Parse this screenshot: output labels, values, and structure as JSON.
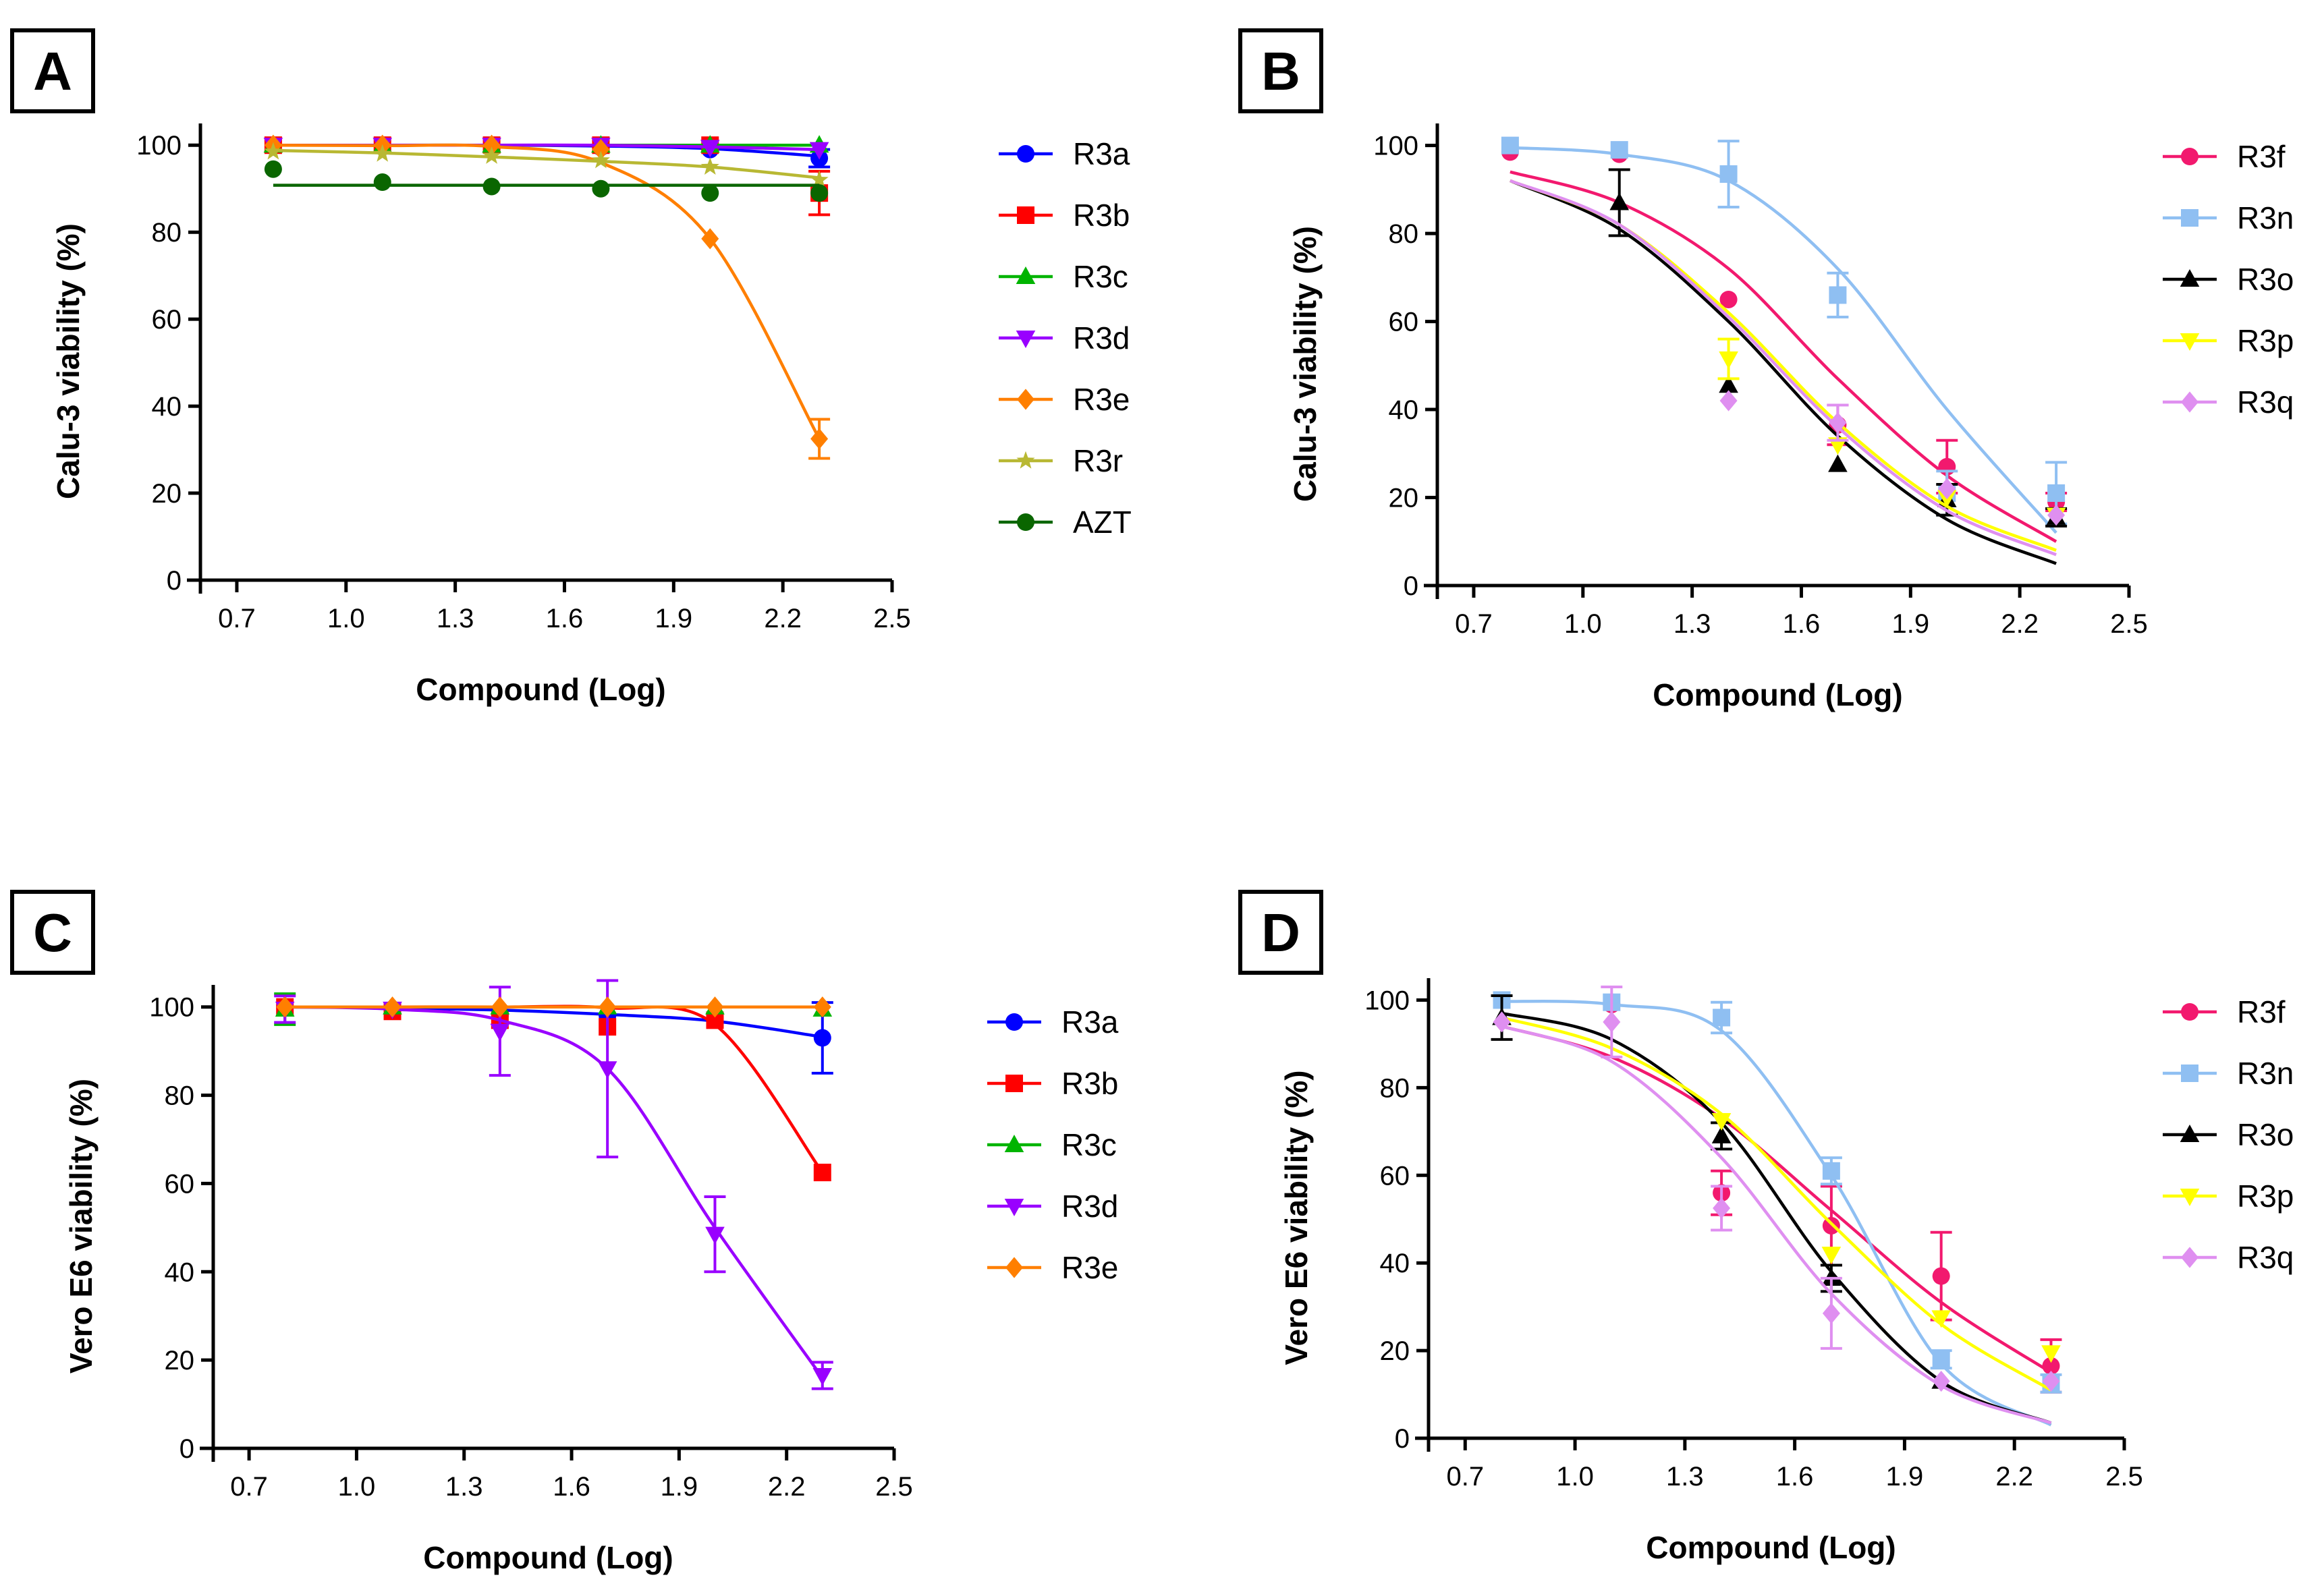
{
  "chart_data": [
    {
      "type": "line",
      "panel": "A",
      "xlabel": "Compound (Log)",
      "ylabel": "Calu-3 viability (%)",
      "xlim": [
        0.6,
        2.5
      ],
      "ylim": [
        0,
        105
      ],
      "xticks": [
        "0.7",
        "1.0",
        "1.3",
        "1.6",
        "1.9",
        "2.2",
        "2.5"
      ],
      "yticks": [
        "0",
        "20",
        "40",
        "60",
        "80",
        "100"
      ],
      "legend": "right",
      "x": [
        0.8,
        1.1,
        1.4,
        1.7,
        2.0,
        2.3
      ],
      "series": [
        {
          "name": "R3a",
          "color": "#0000ff",
          "marker": "circle",
          "values": [
            100,
            100,
            100,
            99.5,
            99,
            97
          ],
          "errors": [
            0,
            0,
            0,
            0,
            0,
            2
          ],
          "fit": [
            100,
            100,
            100,
            99.8,
            99.2,
            97.5
          ]
        },
        {
          "name": "R3b",
          "color": "#ff0000",
          "marker": "square",
          "values": [
            100,
            100,
            100,
            100,
            100,
            89
          ],
          "errors": [
            0,
            0,
            0,
            0,
            0,
            5
          ],
          "fit": [
            100,
            100,
            100,
            100,
            100,
            100
          ]
        },
        {
          "name": "R3c",
          "color": "#00b400",
          "marker": "triangle-up",
          "values": [
            100,
            100,
            100,
            100,
            100,
            100
          ],
          "errors": [
            0,
            0,
            0,
            0,
            0,
            0
          ],
          "fit": [
            100,
            100,
            100,
            100,
            100,
            100
          ]
        },
        {
          "name": "R3d",
          "color": "#9900ff",
          "marker": "triangle-down",
          "values": [
            100,
            100,
            100,
            100,
            99.5,
            99
          ],
          "errors": [
            0,
            0,
            0,
            0,
            0,
            0
          ],
          "fit": [
            100,
            100,
            100,
            100,
            99.6,
            99
          ]
        },
        {
          "name": "R3e",
          "color": "#ff7f00",
          "marker": "diamond",
          "values": [
            100,
            100,
            100,
            99,
            78.5,
            32.5
          ],
          "errors": [
            0,
            0,
            0,
            0,
            0,
            4.5
          ],
          "fit": [
            100,
            99.9,
            99.7,
            96,
            78.5,
            32.5
          ]
        },
        {
          "name": "R3r",
          "color": "#b8b833",
          "marker": "star",
          "values": [
            98.5,
            98,
            97.5,
            96.5,
            95,
            92
          ],
          "errors": [
            0,
            0,
            0,
            0,
            0,
            0
          ],
          "fit": [
            98.8,
            98.2,
            97.3,
            96.3,
            95,
            92.5
          ]
        },
        {
          "name": "AZT",
          "color": "#0a6600",
          "marker": "circle",
          "values": [
            94.5,
            91.5,
            90.5,
            90,
            89,
            89
          ],
          "errors": [
            0,
            0,
            0,
            0,
            0,
            0
          ],
          "fit": [
            90.8,
            90.8,
            90.8,
            90.8,
            90.8,
            90.8
          ]
        }
      ]
    },
    {
      "type": "line",
      "panel": "B",
      "xlabel": "Compound (Log)",
      "ylabel": "Calu-3 viability (%)",
      "xlim": [
        0.6,
        2.5
      ],
      "ylim": [
        0,
        105
      ],
      "xticks": [
        "0.7",
        "1.0",
        "1.3",
        "1.6",
        "1.9",
        "2.2",
        "2.5"
      ],
      "yticks": [
        "0",
        "20",
        "40",
        "60",
        "80",
        "100"
      ],
      "legend": "right",
      "x": [
        0.8,
        1.1,
        1.4,
        1.7,
        2.0,
        2.3
      ],
      "series": [
        {
          "name": "R3f",
          "color": "#f2196e",
          "marker": "circle",
          "values": [
            98.5,
            98,
            65,
            36.5,
            27,
            19
          ],
          "errors": [
            0,
            0,
            0,
            4.5,
            6,
            2
          ],
          "fit": [
            94,
            87,
            72,
            47,
            25,
            10
          ]
        },
        {
          "name": "R3n",
          "color": "#8fbff2",
          "marker": "square",
          "values": [
            100,
            99,
            93.5,
            66,
            21,
            21
          ],
          "errors": [
            0,
            0,
            7.5,
            5,
            5,
            7
          ],
          "fit": [
            99.5,
            98,
            92,
            72,
            40,
            12
          ]
        },
        {
          "name": "R3o",
          "color": "#000000",
          "marker": "triangle-up",
          "values": [
            null,
            87,
            45.5,
            27.5,
            19.5,
            15.5
          ],
          "errors": [
            0,
            7.5,
            0,
            0,
            3.5,
            2
          ],
          "fit": [
            92,
            81,
            60,
            34,
            15,
            5
          ]
        },
        {
          "name": "R3p",
          "color": "#ffff00",
          "marker": "triangle-down",
          "values": [
            null,
            null,
            51.5,
            32,
            20,
            16
          ],
          "errors": [
            0,
            0,
            4.5,
            0,
            0,
            0
          ],
          "fit": [
            92,
            82,
            62,
            37,
            18,
            8
          ]
        },
        {
          "name": "R3q",
          "color": "#df8ff0",
          "marker": "diamond",
          "values": [
            null,
            null,
            42,
            37,
            22,
            16
          ],
          "errors": [
            0,
            0,
            0,
            4,
            0,
            0
          ],
          "fit": [
            92,
            82,
            61,
            36,
            17,
            7
          ]
        }
      ]
    },
    {
      "type": "line",
      "panel": "C",
      "xlabel": "Compound (Log)",
      "ylabel": "Vero E6 viability (%)",
      "xlim": [
        0.6,
        2.5
      ],
      "ylim": [
        0,
        105
      ],
      "xticks": [
        "0.7",
        "1.0",
        "1.3",
        "1.6",
        "1.9",
        "2.2",
        "2.5"
      ],
      "yticks": [
        "0",
        "20",
        "40",
        "60",
        "80",
        "100"
      ],
      "legend": "right",
      "x": [
        0.8,
        1.1,
        1.4,
        1.7,
        2.0,
        2.3
      ],
      "series": [
        {
          "name": "R3a",
          "color": "#0000ff",
          "marker": "circle",
          "values": [
            100,
            99.5,
            98,
            98,
            97.5,
            93
          ],
          "errors": [
            0,
            0,
            0,
            0,
            0,
            8
          ],
          "fit": [
            100,
            99.8,
            99.3,
            98.3,
            96.8,
            93.2
          ]
        },
        {
          "name": "R3b",
          "color": "#ff0000",
          "marker": "square",
          "values": [
            100,
            99,
            97,
            95.5,
            97,
            62.5
          ],
          "errors": [
            0,
            0,
            0,
            0,
            0,
            0
          ],
          "fit": [
            100,
            100,
            100,
            99.8,
            96,
            62.5
          ]
        },
        {
          "name": "R3c",
          "color": "#00b400",
          "marker": "triangle-up",
          "values": [
            99.5,
            100,
            100,
            100,
            100,
            99.5
          ],
          "errors": [
            3.5,
            0,
            0,
            0,
            0,
            0
          ],
          "fit": [
            100,
            100,
            100,
            100,
            100,
            100
          ]
        },
        {
          "name": "R3d",
          "color": "#9900ff",
          "marker": "triangle-down",
          "values": [
            99.5,
            99.5,
            94.5,
            86,
            48.5,
            16.5
          ],
          "errors": [
            3,
            0,
            10,
            20,
            8.5,
            3
          ],
          "fit": [
            100,
            99.5,
            97,
            86,
            50,
            16
          ]
        },
        {
          "name": "R3e",
          "color": "#ff7f00",
          "marker": "diamond",
          "values": [
            100,
            100,
            100,
            100,
            100,
            100
          ],
          "errors": [
            0,
            0,
            0,
            0,
            0,
            0
          ],
          "fit": [
            100,
            100,
            100,
            100,
            100,
            100
          ]
        }
      ]
    },
    {
      "type": "line",
      "panel": "D",
      "xlabel": "Compound (Log)",
      "ylabel": "Vero E6 viability (%)",
      "xlim": [
        0.6,
        2.5
      ],
      "ylim": [
        0,
        105
      ],
      "xticks": [
        "0.7",
        "1.0",
        "1.3",
        "1.6",
        "1.9",
        "2.2",
        "2.5"
      ],
      "yticks": [
        "0",
        "20",
        "40",
        "60",
        "80",
        "100"
      ],
      "legend": "right",
      "x": [
        0.8,
        1.1,
        1.4,
        1.7,
        2.0,
        2.3
      ],
      "series": [
        {
          "name": "R3f",
          "color": "#f2196e",
          "marker": "circle",
          "values": [
            100,
            99,
            56,
            48.5,
            37,
            16.5
          ],
          "errors": [
            0,
            0,
            5,
            9,
            10,
            6
          ],
          "fit": [
            94,
            87,
            73,
            52,
            31,
            15
          ]
        },
        {
          "name": "R3n",
          "color": "#8fbff2",
          "marker": "square",
          "values": [
            100,
            99.5,
            96,
            61,
            18,
            12.5
          ],
          "errors": [
            0,
            0,
            3.5,
            3,
            2,
            2
          ],
          "fit": [
            99.7,
            99,
            93,
            60,
            17,
            3
          ]
        },
        {
          "name": "R3o",
          "color": "#000000",
          "marker": "triangle-up",
          "values": [
            96,
            null,
            69,
            36.5,
            13,
            null
          ],
          "errors": [
            5,
            0,
            3,
            3,
            0,
            0
          ],
          "fit": [
            97,
            91,
            72,
            38,
            13,
            3.5
          ]
        },
        {
          "name": "R3p",
          "color": "#ffff00",
          "marker": "triangle-down",
          "values": [
            null,
            null,
            72.5,
            42,
            27.5,
            19.5
          ],
          "errors": [
            0,
            0,
            0,
            0,
            0,
            0
          ],
          "fit": [
            96,
            89,
            74,
            49,
            26,
            11
          ]
        },
        {
          "name": "R3q",
          "color": "#df8ff0",
          "marker": "diamond",
          "values": [
            95,
            95,
            52.5,
            28.5,
            13,
            13
          ],
          "errors": [
            0,
            8,
            5,
            8,
            0,
            0
          ],
          "fit": [
            94,
            86,
            64,
            33,
            12,
            3.5
          ]
        }
      ]
    }
  ]
}
